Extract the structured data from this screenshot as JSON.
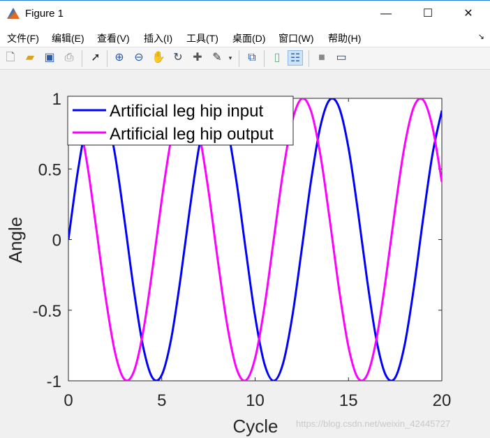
{
  "window": {
    "title": "Figure 1",
    "minimize": "—",
    "maximize": "☐",
    "close": "✕"
  },
  "menu": [
    "文件(F)",
    "编辑(E)",
    "查看(V)",
    "插入(I)",
    "工具(T)",
    "桌面(D)",
    "窗口(W)",
    "帮助(H)"
  ],
  "toolbar": [
    "new-file-icon",
    "open-folder-icon",
    "save-icon",
    "print-icon",
    "pointer-icon",
    "zoom-in-icon",
    "zoom-out-icon",
    "pan-hand-icon",
    "rotate-3d-icon",
    "data-cursor-icon",
    "brush-icon",
    "link-plot-icon",
    "colorbar-icon",
    "legend-icon",
    "hide-plot-tools-icon",
    "show-plot-tools-icon"
  ],
  "watermark": "https://blog.csdn.net/weixin_42445727",
  "chart_data": {
    "type": "line",
    "xlabel": "Cycle",
    "ylabel": "Angle",
    "xlim": [
      0,
      20
    ],
    "ylim": [
      -1,
      1
    ],
    "xticks": [
      "0",
      "5",
      "10",
      "15",
      "20"
    ],
    "yticks": [
      "-1",
      "-0.5",
      "0",
      "0.5",
      "1"
    ],
    "grid": false,
    "legend_placement": "top-left",
    "x": [
      0,
      0.5,
      1,
      1.5,
      2,
      2.5,
      3,
      3.5,
      4,
      4.5,
      5,
      5.5,
      6,
      6.5,
      7,
      7.5,
      8,
      8.5,
      9,
      9.5,
      10,
      10.5,
      11,
      11.5,
      12,
      12.5,
      13,
      13.5,
      14,
      14.5,
      15,
      15.5,
      16,
      16.5,
      17,
      17.5,
      18,
      18.5,
      19,
      19.5,
      20
    ],
    "series": [
      {
        "name": "Artificial leg hip input",
        "color": "#0000ff",
        "values": [
          0,
          0.479,
          0.841,
          0.997,
          0.909,
          0.598,
          0.141,
          -0.351,
          -0.757,
          -0.978,
          -0.959,
          -0.706,
          -0.279,
          0.215,
          0.657,
          0.938,
          0.989,
          0.798,
          0.412,
          -0.075,
          -0.544,
          -0.88,
          -1.0,
          -0.875,
          -0.537,
          -0.066,
          0.42,
          0.804,
          0.991,
          0.935,
          0.65,
          0.207,
          -0.288,
          -0.712,
          -0.961,
          -0.978,
          -0.751,
          -0.342,
          0.15,
          0.605,
          0.913
        ]
      },
      {
        "name": "Artificial leg hip output",
        "color": "#ff00ff",
        "values": [
          1,
          0.878,
          0.54,
          0.071,
          -0.416,
          -0.801,
          -0.99,
          -0.936,
          -0.654,
          -0.211,
          0.284,
          0.709,
          0.96,
          0.977,
          0.754,
          0.347,
          -0.146,
          -0.602,
          -0.911,
          -0.997,
          -0.839,
          -0.476,
          0.004,
          0.483,
          0.844,
          0.998,
          0.907,
          0.595,
          0.137,
          -0.355,
          -0.76,
          -0.979,
          -0.958,
          -0.703,
          -0.275,
          0.219,
          0.66,
          0.939,
          0.989,
          0.795,
          0.408
        ]
      }
    ]
  }
}
